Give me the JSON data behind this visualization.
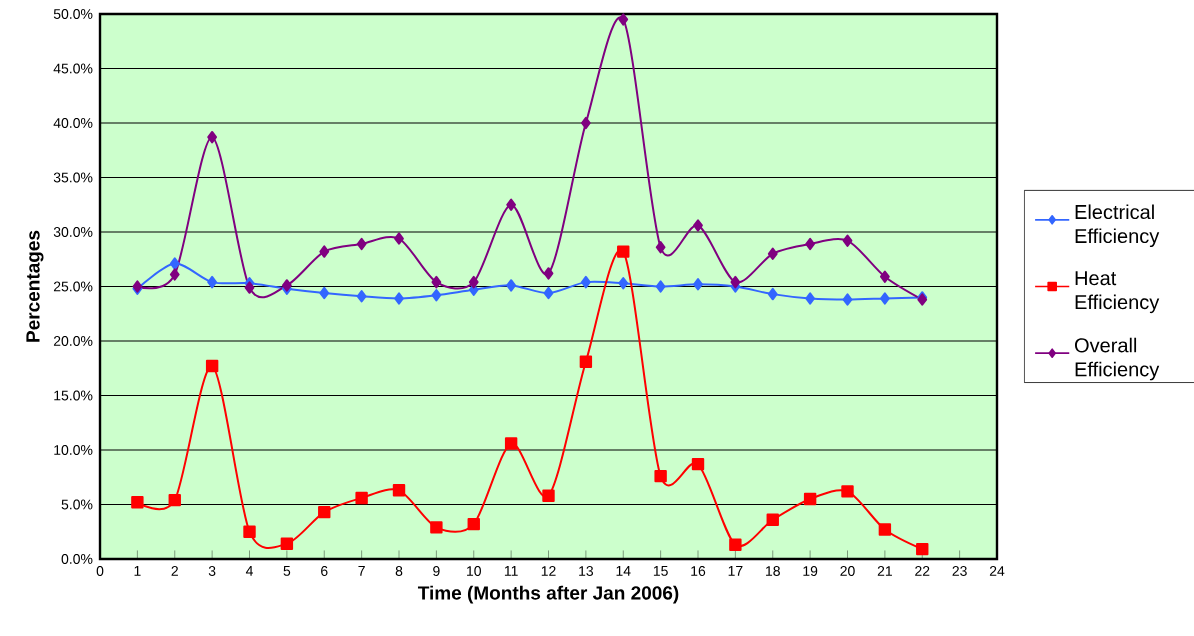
{
  "chart_data": {
    "type": "line",
    "xlabel": "Time (Months after Jan 2006)",
    "ylabel": "Percentages",
    "x": [
      1,
      2,
      3,
      4,
      5,
      6,
      7,
      8,
      9,
      10,
      11,
      12,
      13,
      14,
      15,
      16,
      17,
      18,
      19,
      20,
      21,
      22
    ],
    "series": [
      {
        "name": "Electrical Efficiency",
        "color": "#3366ff",
        "marker": "diamond",
        "values": [
          24.8,
          27.1,
          25.4,
          25.3,
          24.8,
          24.4,
          24.1,
          23.9,
          24.2,
          24.7,
          25.1,
          24.4,
          25.4,
          25.3,
          25.0,
          25.2,
          25.0,
          24.3,
          23.9,
          23.8,
          23.9,
          24.0
        ]
      },
      {
        "name": "Heat Efficiency",
        "color": "#ff0000",
        "marker": "square",
        "values": [
          5.2,
          5.4,
          17.7,
          2.5,
          1.4,
          4.3,
          5.6,
          6.3,
          2.9,
          3.2,
          10.6,
          5.8,
          18.1,
          28.2,
          7.6,
          8.7,
          1.3,
          3.6,
          5.5,
          6.2,
          2.7,
          0.9
        ]
      },
      {
        "name": "Overall Efficiency",
        "color": "#800080",
        "marker": "diamond",
        "values": [
          25.0,
          26.1,
          38.7,
          24.9,
          25.1,
          28.2,
          28.9,
          29.4,
          25.4,
          25.4,
          32.5,
          26.2,
          40.0,
          49.5,
          28.6,
          30.6,
          25.4,
          28.0,
          28.9,
          29.2,
          25.9,
          23.8
        ]
      }
    ],
    "xlim": [
      0,
      24
    ],
    "xticks": [
      0,
      1,
      2,
      3,
      4,
      5,
      6,
      7,
      8,
      9,
      10,
      11,
      12,
      13,
      14,
      15,
      16,
      17,
      18,
      19,
      20,
      21,
      22,
      23,
      24
    ],
    "ylim": [
      0,
      50
    ],
    "yticks": [
      {
        "value": 0,
        "label": "0.0%"
      },
      {
        "value": 5,
        "label": "5.0%"
      },
      {
        "value": 10,
        "label": "10.0%"
      },
      {
        "value": 15,
        "label": "15.0%"
      },
      {
        "value": 20,
        "label": "20.0%"
      },
      {
        "value": 25,
        "label": "25.0%"
      },
      {
        "value": 30,
        "label": "30.0%"
      },
      {
        "value": 35,
        "label": "35.0%"
      },
      {
        "value": 40,
        "label": "40.0%"
      },
      {
        "value": 45,
        "label": "45.0%"
      },
      {
        "value": 50,
        "label": "50.0%"
      }
    ],
    "grid": "y",
    "legend": "right"
  }
}
